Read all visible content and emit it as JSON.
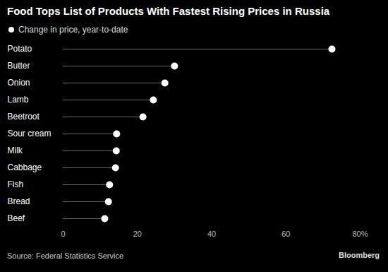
{
  "chart_data": {
    "type": "lollipop",
    "orientation": "horizontal",
    "title": "Food Tops List of Products With Fastest Rising Prices in Russia",
    "subtitle": "Change in price, year-to-date",
    "caption": "Source: Federal Statistics Service",
    "credit": "Bloomberg",
    "categories": [
      "Potato",
      "Butter",
      "Onion",
      "Lamb",
      "Beetroot",
      "Sour cream",
      "Milk",
      "Cabbage",
      "Fish",
      "Bread",
      "Beef"
    ],
    "values": [
      72.4,
      30.0,
      27.4,
      24.3,
      21.5,
      14.4,
      14.3,
      14.1,
      12.5,
      12.2,
      11.2
    ],
    "color": "#ffffff",
    "marker": "circle",
    "xlim": [
      0,
      80
    ],
    "xticks": [
      0,
      20,
      40,
      60,
      {
        "value": 80,
        "label": "80%"
      }
    ],
    "grid": false
  }
}
